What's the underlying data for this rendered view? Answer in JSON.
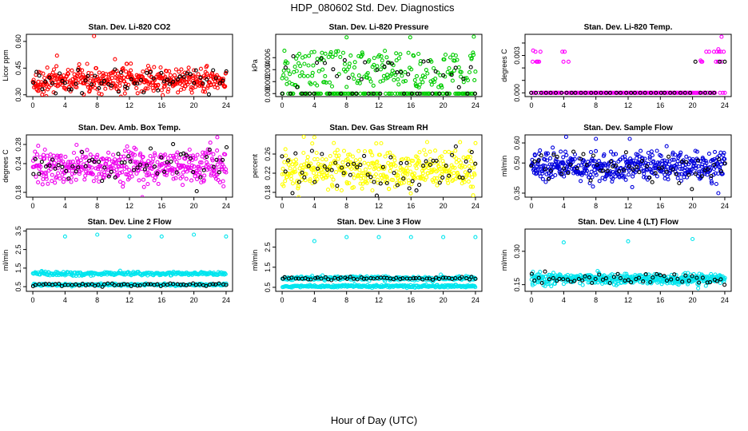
{
  "figure": {
    "title": "HDP_080602  Std. Dev. Diagnostics",
    "xlabel": "Hour of Day (UTC)"
  },
  "colors": {
    "overlay": "#000000"
  },
  "chart_data": [
    {
      "type": "scatter",
      "title": "Stan. Dev. Li-820 CO2",
      "ylabel": "Licor ppm",
      "color": "#ff0000",
      "xlim": [
        -0.8,
        24.8
      ],
      "ylim": [
        0.29,
        0.64
      ],
      "xticks": [
        0,
        4,
        8,
        12,
        16,
        20,
        24
      ],
      "yticks": [
        0.3,
        0.45,
        0.6
      ],
      "ytick_labels": [
        "0.30",
        "0.45",
        "0.60"
      ],
      "point_count": 440,
      "overlay_count": 60,
      "center": 0.38,
      "spread": 0.035,
      "outliers": [
        [
          7.6,
          0.63
        ],
        [
          3.0,
          0.52
        ],
        [
          10.2,
          0.5
        ]
      ],
      "grid": false,
      "legend": "none"
    },
    {
      "type": "scatter",
      "title": "Stan. Dev. Li-820 Pressure",
      "ylabel": "kPa",
      "color": "#00cc00",
      "xlim": [
        -0.8,
        24.8
      ],
      "ylim": [
        -0.0005,
        0.0099
      ],
      "xticks": [
        0,
        4,
        8,
        12,
        16,
        20,
        24
      ],
      "yticks": [
        0.0,
        0.002,
        0.004,
        0.006
      ],
      "ytick_labels": [
        "0.000",
        "0.002",
        "0.004",
        "0.006"
      ],
      "point_count": 330,
      "overlay_count": 50,
      "center": 0.004,
      "spread": 0.0025,
      "outliers": [
        [
          8.0,
          0.0094
        ],
        [
          15.9,
          0.0094
        ],
        [
          23.8,
          0.0095
        ]
      ],
      "grid": false,
      "legend": "none"
    },
    {
      "type": "scatter",
      "title": "Stan. Dev. Li-820 Temp.",
      "ylabel": "degrees C",
      "color": "#ff00ff",
      "xlim": [
        -0.8,
        24.8
      ],
      "ylim": [
        -0.0003,
        0.0047
      ],
      "xticks": [
        0,
        4,
        8,
        12,
        16,
        20,
        24
      ],
      "yticks": [
        0.0,
        0.001,
        0.002,
        0.003,
        0.004
      ],
      "ytick_labels": [
        "0.000",
        "",
        "",
        "0.003",
        ""
      ],
      "point_count": 200,
      "overlay_count": 40,
      "center": 0.0,
      "spread": 0.0,
      "outliers": [
        [
          0.2,
          0.0034
        ],
        [
          0.8,
          0.0025
        ],
        [
          21.0,
          0.0026
        ],
        [
          23.2,
          0.0035
        ],
        [
          23.6,
          0.0045
        ]
      ],
      "grid": false,
      "legend": "none"
    },
    {
      "type": "scatter",
      "title": "Stan. Dev. Amb. Box Temp.",
      "ylabel": "degrees C",
      "color": "#ee00ee",
      "xlim": [
        -0.8,
        24.8
      ],
      "ylim": [
        0.17,
        0.3
      ],
      "xticks": [
        0,
        4,
        8,
        12,
        16,
        20,
        24
      ],
      "yticks": [
        0.18,
        0.24,
        0.28
      ],
      "ytick_labels": [
        "0.18",
        "0.24",
        "0.28"
      ],
      "point_count": 420,
      "overlay_count": 60,
      "center": 0.235,
      "spread": 0.018,
      "outliers": [
        [
          13.6,
          0.17
        ],
        [
          22.9,
          0.295
        ]
      ],
      "grid": false,
      "legend": "none"
    },
    {
      "type": "scatter",
      "title": "Stan. Dev. Gas Stream RH",
      "ylabel": "percent",
      "color": "#ffff00",
      "xlim": [
        -0.8,
        24.8
      ],
      "ylim": [
        0.17,
        0.3
      ],
      "xticks": [
        0,
        4,
        8,
        12,
        16,
        20,
        24
      ],
      "yticks": [
        0.18,
        0.22,
        0.26
      ],
      "ytick_labels": [
        "0.18",
        "0.22",
        "0.26"
      ],
      "point_count": 420,
      "overlay_count": 60,
      "center": 0.225,
      "spread": 0.02,
      "outliers": [
        [
          4.0,
          0.295
        ],
        [
          18.0,
          0.285
        ]
      ],
      "grid": false,
      "legend": "none"
    },
    {
      "type": "scatter",
      "title": "Stan. Dev. Sample Flow",
      "ylabel": "ml/min",
      "color": "#0000dd",
      "xlim": [
        -0.8,
        24.8
      ],
      "ylim": [
        0.33,
        0.64
      ],
      "xticks": [
        0,
        4,
        8,
        12,
        16,
        20,
        24
      ],
      "yticks": [
        0.35,
        0.5,
        0.6
      ],
      "ytick_labels": [
        "0.35",
        "0.50",
        "0.60"
      ],
      "point_count": 480,
      "overlay_count": 60,
      "center": 0.48,
      "spread": 0.035,
      "outliers": [
        [
          4.3,
          0.63
        ],
        [
          8.0,
          0.62
        ],
        [
          12.2,
          0.62
        ],
        [
          23.2,
          0.35
        ]
      ],
      "grid": false,
      "legend": "none"
    },
    {
      "type": "scatter",
      "title": "Stan. Dev. Line 2 Flow",
      "ylabel": "ml/min",
      "color": "#00e5ee",
      "xlim": [
        -0.8,
        24.8
      ],
      "ylim": [
        0.25,
        3.6
      ],
      "xticks": [
        0,
        4,
        8,
        12,
        16,
        20,
        24
      ],
      "yticks": [
        0.5,
        1.5,
        2.5,
        3.5
      ],
      "ytick_labels": [
        "0.5",
        "1.5",
        "2.5",
        "3.5"
      ],
      "point_count": 520,
      "overlay_count": 60,
      "center": 1.2,
      "spread": 0.05,
      "low_band": 0.6,
      "outliers": [
        [
          4.0,
          3.2
        ],
        [
          8.0,
          3.3
        ],
        [
          12.0,
          3.2
        ],
        [
          16.0,
          3.2
        ],
        [
          20.0,
          3.3
        ],
        [
          24.0,
          3.2
        ]
      ],
      "grid": false,
      "legend": "none"
    },
    {
      "type": "scatter",
      "title": "Stan. Dev. Line 3 Flow",
      "ylabel": "ml/min",
      "color": "#00e5ee",
      "xlim": [
        -0.8,
        24.8
      ],
      "ylim": [
        0.3,
        3.4
      ],
      "xticks": [
        0,
        4,
        8,
        12,
        16,
        20,
        24
      ],
      "yticks": [
        0.5,
        1.5,
        2.5
      ],
      "ytick_labels": [
        "0.5",
        "1.5",
        "2.5"
      ],
      "point_count": 520,
      "overlay_count": 60,
      "center": 0.95,
      "spread": 0.05,
      "low_band": 0.55,
      "outliers": [
        [
          4.0,
          2.8
        ],
        [
          8.0,
          3.0
        ],
        [
          12.0,
          3.0
        ],
        [
          16.0,
          3.0
        ],
        [
          20.0,
          3.0
        ],
        [
          24.0,
          3.0
        ]
      ],
      "grid": false,
      "legend": "none"
    },
    {
      "type": "scatter",
      "title": "Stan. Dev. Line 4 (LT) Flow",
      "ylabel": "ml/min",
      "color": "#00e5ee",
      "xlim": [
        -0.8,
        24.8
      ],
      "ylim": [
        0.12,
        0.4
      ],
      "xticks": [
        0,
        4,
        8,
        12,
        16,
        20,
        24
      ],
      "yticks": [
        0.15,
        0.3
      ],
      "ytick_labels": [
        "0.15",
        "0.30"
      ],
      "point_count": 480,
      "overlay_count": 55,
      "center": 0.175,
      "spread": 0.012,
      "outliers": [
        [
          4.0,
          0.34
        ],
        [
          12.0,
          0.345
        ],
        [
          20.0,
          0.355
        ]
      ],
      "grid": false,
      "legend": "none"
    }
  ]
}
